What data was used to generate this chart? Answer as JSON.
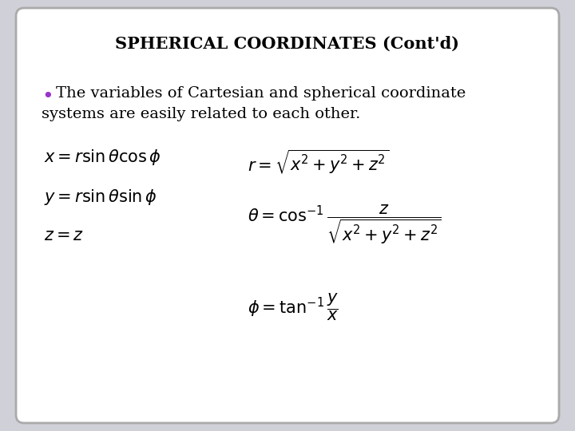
{
  "title": "SPHERICAL COORDINATES (Cont'd)",
  "title_fontsize": 15,
  "title_color": "#000000",
  "background_color": "#d0d0d8",
  "slide_bg": "#ffffff",
  "border_color": "#aaaaaa",
  "bullet_color": "#9933cc",
  "bullet_text_line1": "•  The variables of Cartesian and spherical coordinate",
  "bullet_text_line2": "    systems are easily related to each other.",
  "bullet_fontsize": 14,
  "eq_fontsize": 15
}
